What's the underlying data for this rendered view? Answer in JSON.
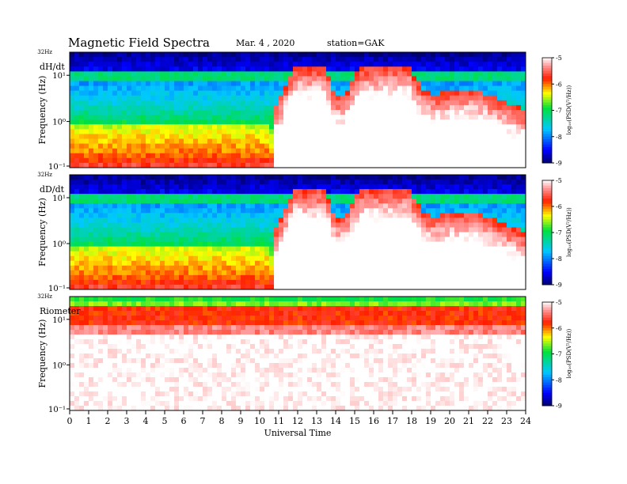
{
  "header": {
    "title": "Magnetic  Field  Spectra",
    "date": "Mar. 4 , 2020",
    "station": "station=GAK"
  },
  "chart_data": [
    {
      "type": "heatmap",
      "panel_label": "dH/dt",
      "ylabel": "Frequency (Hz)",
      "top_label": "32Hz",
      "y_ticks": [
        "10⁻¹",
        "10⁰",
        "10¹"
      ],
      "scale": "log",
      "color_scale": {
        "label": "log₁₀(PSD(V²/Hz))",
        "min": -9,
        "max": -5,
        "ticks": [
          "-5",
          "-6",
          "-7",
          "-8",
          "-9"
        ]
      },
      "pulsation_event_hours": [
        11.5,
        19
      ]
    },
    {
      "type": "heatmap",
      "panel_label": "dD/dt",
      "ylabel": "Frequency (Hz)",
      "top_label": "32Hz",
      "y_ticks": [
        "10⁻¹",
        "10⁰",
        "10¹"
      ],
      "scale": "log",
      "color_scale": {
        "label": "log₁₀(PSD(V²/Hz))",
        "min": -9,
        "max": -5,
        "ticks": [
          "-5",
          "-6",
          "-7",
          "-8",
          "-9"
        ]
      },
      "pulsation_event_hours": [
        11.5,
        19
      ]
    },
    {
      "type": "heatmap",
      "panel_label": "Riometer",
      "ylabel": "Frequency (Hz)",
      "top_label": "32Hz",
      "y_ticks": [
        "10⁻¹",
        "10⁰",
        "10¹"
      ],
      "scale": "log",
      "color_scale": {
        "label": "log₁₀(PSD(V²/Hz))",
        "min": -9,
        "max": -5,
        "ticks": [
          "-5",
          "-6",
          "-7",
          "-8",
          "-9"
        ]
      }
    }
  ],
  "x_axis": {
    "xlabel": "Universal Time",
    "xlim": [
      0,
      24
    ],
    "tick_labels": [
      "0",
      "1",
      "2",
      "3",
      "4",
      "5",
      "6",
      "7",
      "8",
      "9",
      "10",
      "11",
      "12",
      "13",
      "14",
      "15",
      "16",
      "17",
      "18",
      "19",
      "20",
      "21",
      "22",
      "23",
      "24"
    ]
  }
}
